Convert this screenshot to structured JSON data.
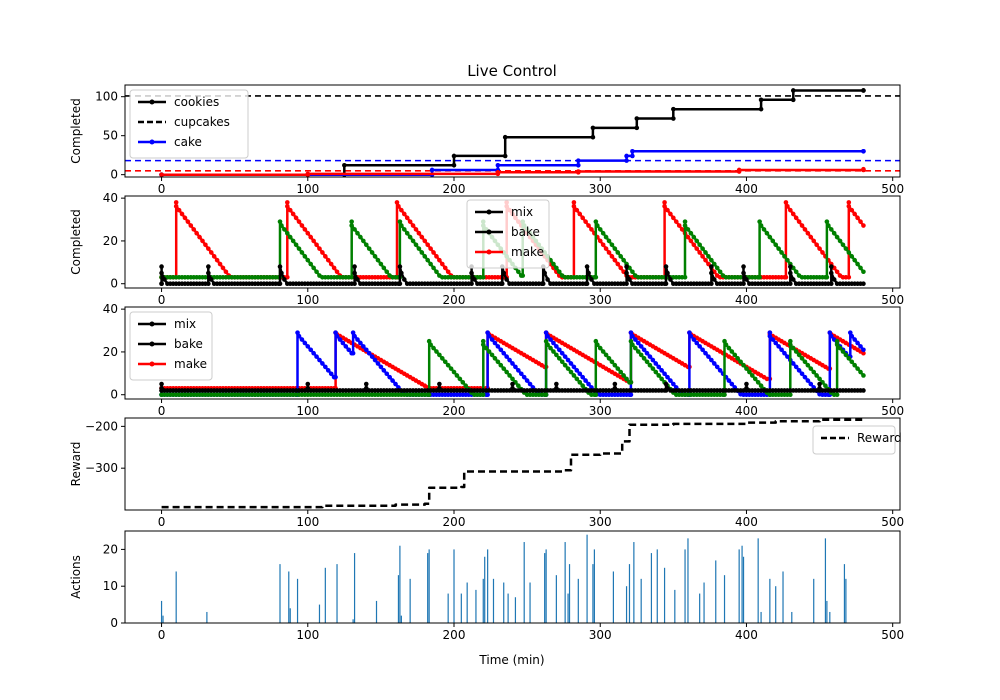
{
  "chart_data": {
    "title": "Live Control",
    "xlabel": "Time (min)",
    "xlim": [
      -25,
      505
    ],
    "xticks": [
      0,
      100,
      200,
      300,
      400,
      500
    ],
    "colors": {
      "black": "#000000",
      "blue": "#0000ff",
      "red": "#ff0000",
      "green": "#008000",
      "bar": "#1f77b4"
    },
    "subplots": [
      {
        "type": "line",
        "ylabel": "Completed",
        "ylim": [
          -3,
          115
        ],
        "yticks": [
          0,
          50,
          100
        ],
        "legend": {
          "placement": "upper-left",
          "entries": [
            {
              "name": "cookies",
              "color": "#000000",
              "style": "solid-marker"
            },
            {
              "name": "cupcakes",
              "color": "#000000",
              "style": "dashed"
            },
            {
              "name": "cake",
              "color": "#0000ff",
              "style": "solid-marker"
            }
          ]
        },
        "hlines": [
          {
            "y": 101,
            "color": "#000000"
          },
          {
            "y": 18,
            "color": "#0000ff"
          },
          {
            "y": 5,
            "color": "#ff0000"
          }
        ],
        "series": [
          {
            "name": "cookies",
            "color": "#000000",
            "step": true,
            "x": [
              0,
              125,
              200,
              235,
              295,
              325,
              350,
              410,
              432,
              480
            ],
            "y": [
              0,
              12,
              24,
              48,
              60,
              72,
              84,
              96,
              108,
              108
            ]
          },
          {
            "name": "cake",
            "color": "#0000ff",
            "step": true,
            "x": [
              0,
              185,
              230,
              285,
              318,
              322,
              480
            ],
            "y": [
              0,
              6,
              12,
              18,
              24,
              30,
              30
            ]
          },
          {
            "color": "#ff0000",
            "step": true,
            "x": [
              0,
              100,
              230,
              285,
              395,
              480
            ],
            "y": [
              0,
              1,
              3,
              4,
              6,
              7
            ]
          }
        ]
      },
      {
        "type": "line",
        "ylabel": "Completed",
        "ylim": [
          -2,
          41
        ],
        "yticks": [
          0,
          20,
          40
        ],
        "legend": {
          "placement": "upper-center",
          "entries": [
            {
              "name": "mix",
              "color": "#000000",
              "style": "solid-marker"
            },
            {
              "name": "bake",
              "color": "#000000",
              "style": "solid-marker"
            },
            {
              "name": "make",
              "color": "#ff0000",
              "style": "solid-marker"
            }
          ]
        },
        "sawtooth": [
          {
            "color": "#ff0000",
            "base": 3,
            "peak": 38,
            "starts": [
              10,
              86,
              161,
              236,
              282,
              344,
              427,
              470
            ],
            "decay_slope": 0.9
          },
          {
            "color": "#008000",
            "base": 3,
            "peak": 29,
            "starts": [
              81,
              130,
              163,
              220,
              247,
              297,
              358,
              409,
              455
            ],
            "decay_slope": 0.9
          },
          {
            "color": "#000000",
            "base": 0,
            "peak": 8,
            "starts": [
              0,
              32,
              81,
              132,
              163,
              212,
              233,
              261,
              291,
              318,
              345,
              376,
              398,
              430,
              458
            ],
            "decay_slope": 1.5
          }
        ]
      },
      {
        "type": "line",
        "ylabel": "",
        "ylim": [
          -2,
          41
        ],
        "yticks": [
          0,
          20,
          40
        ],
        "legend": {
          "placement": "upper-left",
          "entries": [
            {
              "name": "mix",
              "color": "#000000",
              "style": "solid-marker"
            },
            {
              "name": "bake",
              "color": "#000000",
              "style": "solid-marker"
            },
            {
              "name": "make",
              "color": "#ff0000",
              "style": "solid-marker"
            }
          ]
        },
        "sawtooth": [
          {
            "color": "#ff0000",
            "base": 3,
            "peak": 29,
            "starts": [
              119,
              223,
              263,
              321,
              361,
              416,
              457
            ],
            "decay_slope": 0.4
          },
          {
            "color": "#0000ff",
            "base": 0,
            "peak": 29,
            "starts": [
              93,
              119,
              131,
              223,
              263,
              321,
              361,
              416,
              457,
              471
            ],
            "decay_slope": 0.8
          },
          {
            "color": "#008000",
            "base": 0,
            "peak": 25,
            "starts": [
              183,
              220,
              263,
              297,
              321,
              385,
              430,
              462
            ],
            "decay_slope": 0.8
          },
          {
            "color": "#000000",
            "base": 2,
            "peak": 5,
            "starts": [
              0,
              100,
              140,
              190,
              240,
              270,
              310,
              345,
              400,
              450
            ],
            "decay_slope": 1.0
          }
        ]
      },
      {
        "type": "line",
        "ylabel": "Reward",
        "ylim": [
          -400,
          -180
        ],
        "yticks": [
          -200,
          -300
        ],
        "legend": {
          "placement": "upper-right",
          "entries": [
            {
              "name": "Reward",
              "color": "#000000",
              "style": "dashed"
            }
          ]
        },
        "series": [
          {
            "name": "Reward",
            "color": "#000000",
            "step": true,
            "dashed": true,
            "x": [
              0,
              110,
              160,
              180,
              183,
              205,
              207,
              275,
              280,
              300,
              315,
              320,
              350,
              400,
              420,
              450,
              480
            ],
            "y": [
              -393,
              -390,
              -387,
              -385,
              -347,
              -345,
              -308,
              -305,
              -268,
              -265,
              -236,
              -196,
              -194,
              -191,
              -188,
              -184,
              -182
            ]
          }
        ]
      },
      {
        "type": "bar",
        "ylabel": "Actions",
        "ylim": [
          0,
          25
        ],
        "yticks": [
          0,
          10,
          20
        ],
        "color": "#1f77b4",
        "x": [
          0,
          1,
          10,
          31,
          81,
          87,
          88,
          93,
          108,
          112,
          120,
          131,
          132,
          147,
          162,
          163,
          164,
          170,
          182,
          183,
          196,
          200,
          205,
          209,
          215,
          220,
          221,
          223,
          227,
          234,
          237,
          242,
          248,
          252,
          262,
          263,
          270,
          276,
          278,
          279,
          285,
          291,
          295,
          296,
          309,
          318,
          320,
          323,
          328,
          335,
          339,
          344,
          351,
          358,
          360,
          368,
          371,
          379,
          385,
          395,
          397,
          398,
          408,
          410,
          416,
          420,
          425,
          431,
          446,
          454,
          455,
          457,
          467,
          468
        ],
        "values": [
          6,
          2,
          14,
          3,
          16,
          14,
          4,
          12,
          5,
          15,
          16,
          1,
          19,
          6,
          13,
          21,
          2,
          12,
          19,
          20,
          8,
          20,
          8,
          11,
          9,
          12,
          18,
          20,
          12,
          11,
          8,
          7,
          22,
          11,
          19,
          20,
          13,
          22,
          8,
          16,
          12,
          24,
          16,
          20,
          14,
          10,
          16,
          22,
          12,
          19,
          20,
          15,
          9,
          20,
          23,
          8,
          11,
          17,
          13,
          20,
          21,
          18,
          23,
          3,
          12,
          10,
          14,
          3,
          12,
          23,
          6,
          3,
          16,
          12
        ]
      }
    ]
  }
}
